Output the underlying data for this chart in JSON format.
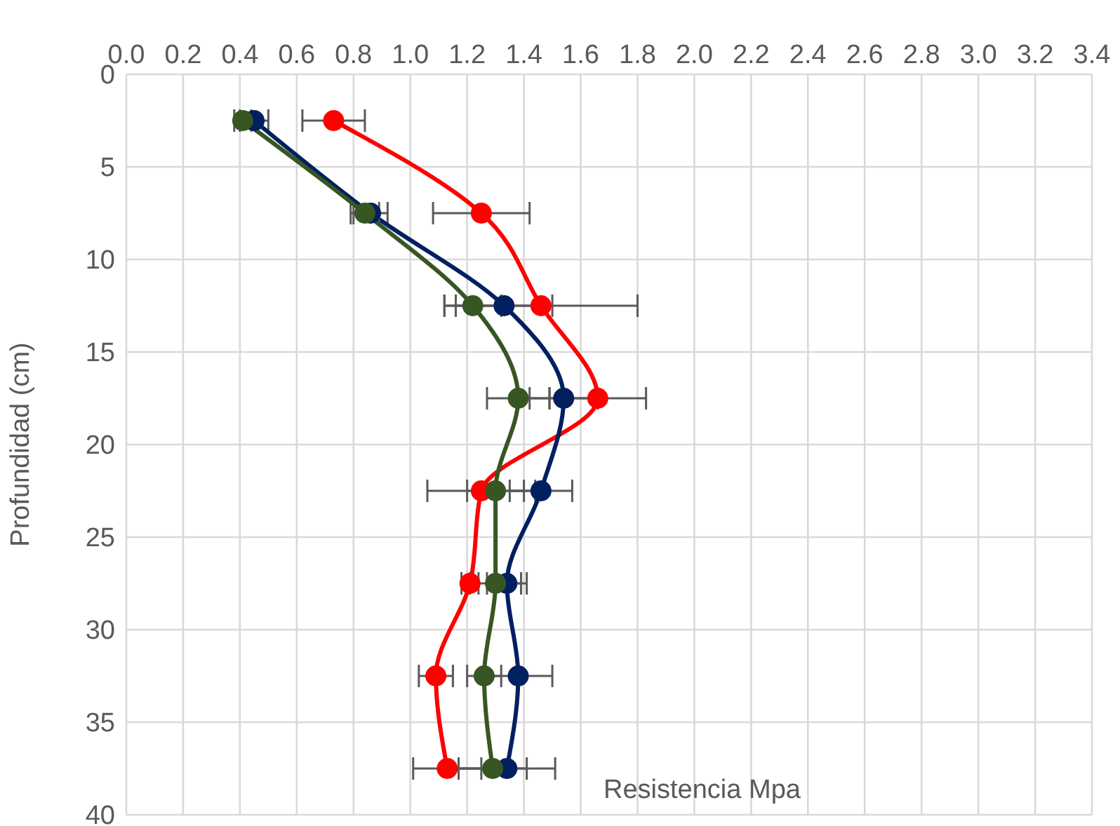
{
  "chart_data": {
    "type": "line",
    "orientation": "horizontal",
    "xlabel": "Resistencia Mpa",
    "ylabel": "Profundidad (cm)",
    "x": [
      2.5,
      7.5,
      12.5,
      17.5,
      22.5,
      27.5,
      32.5,
      37.5
    ],
    "series": [
      {
        "color": "#ff0000",
        "values": [
          0.73,
          1.25,
          1.46,
          1.66,
          1.25,
          1.21,
          1.09,
          1.13
        ],
        "errors": [
          0.11,
          0.17,
          0.34,
          0.17,
          0.19,
          0.03,
          0.06,
          0.12
        ]
      },
      {
        "color": "#002060",
        "values": [
          0.45,
          0.86,
          1.33,
          1.54,
          1.46,
          1.34,
          1.38,
          1.34
        ],
        "errors": [
          0.05,
          0.06,
          0.17,
          0.12,
          0.11,
          0.07,
          0.12,
          0.17
        ]
      },
      {
        "color": "#375623",
        "values": [
          0.41,
          0.84,
          1.22,
          1.38,
          1.3,
          1.3,
          1.26,
          1.29
        ],
        "errors": [
          0.03,
          0.05,
          0.1,
          0.11,
          0.1,
          0.09,
          0.06,
          0.12
        ]
      }
    ],
    "xlim": [
      0,
      3.4
    ],
    "xticks": [
      {
        "value": 0,
        "label": "0.0"
      },
      0.2,
      0.4,
      0.6,
      0.8,
      {
        "value": 1,
        "label": "1.0"
      },
      1.2,
      1.4,
      1.6,
      1.8,
      {
        "value": 2,
        "label": "2.0"
      },
      2.2,
      2.4,
      2.6,
      2.8,
      {
        "value": 3,
        "label": "3.0"
      },
      3.2,
      3.4
    ],
    "ylim": [
      40,
      0
    ],
    "yticks": [
      0,
      5,
      10,
      15,
      20,
      25,
      30,
      35,
      40
    ],
    "grid": true,
    "legend": false,
    "marker": "circle",
    "line_style": "solid"
  }
}
